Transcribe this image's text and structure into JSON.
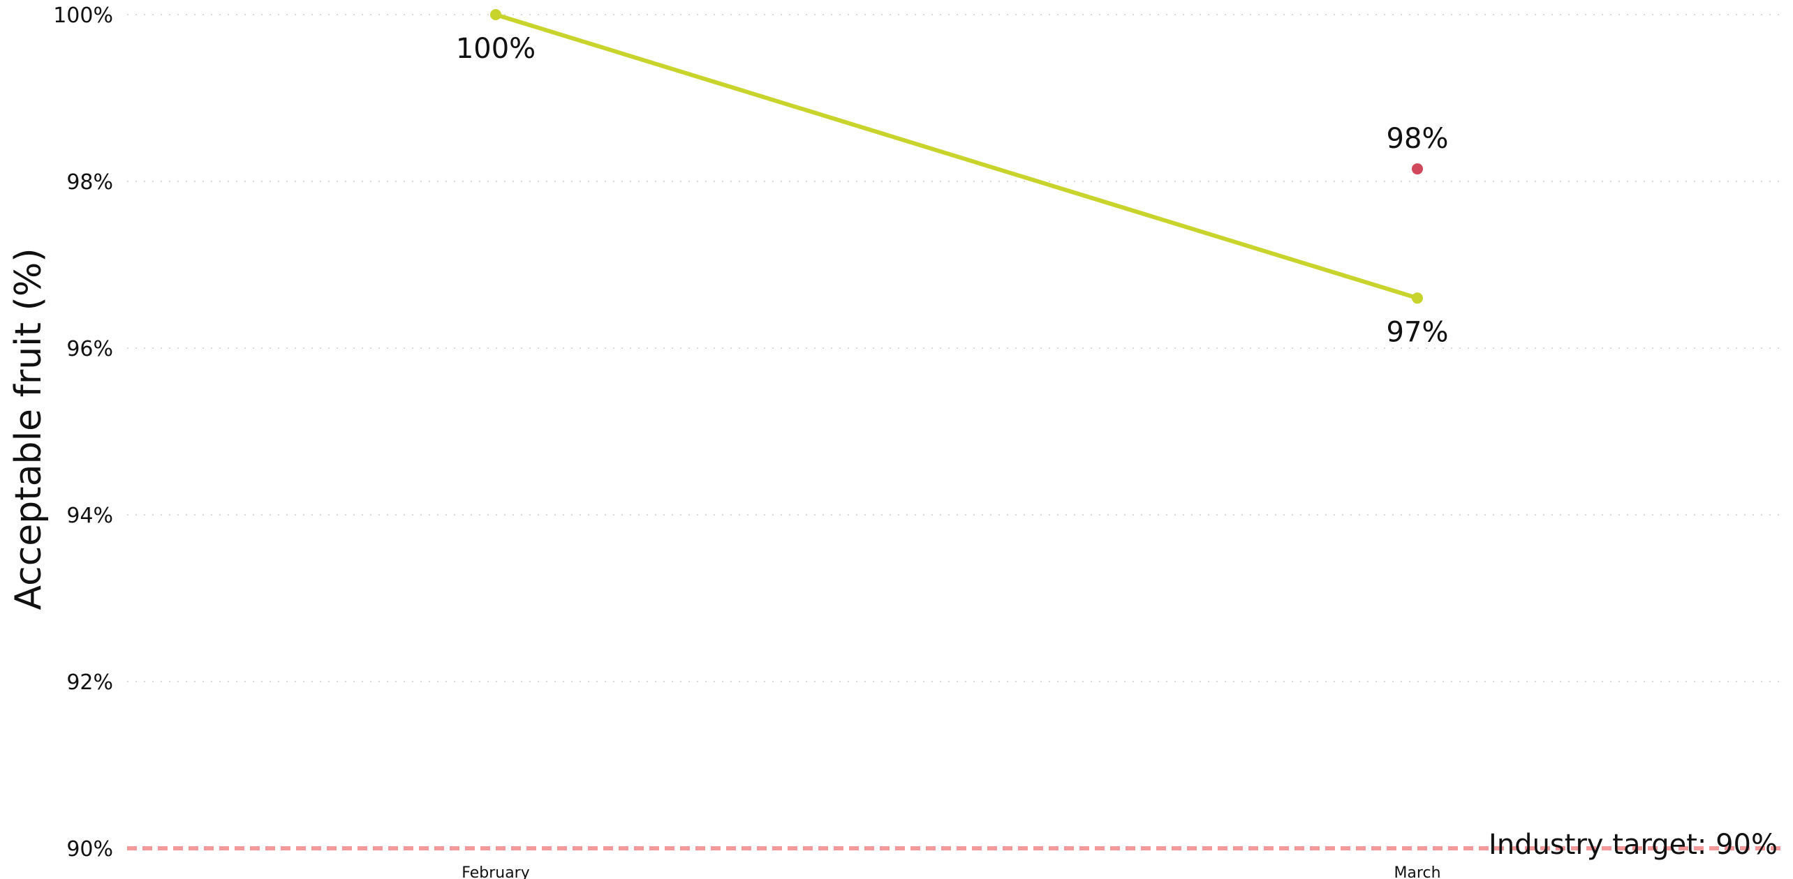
{
  "chart_data": {
    "type": "line",
    "title": "",
    "xlabel": "",
    "ylabel": "Acceptable fruit (%)",
    "categories": [
      "February",
      "March"
    ],
    "ylim": [
      90,
      100
    ],
    "y_ticks": [
      {
        "value": 90,
        "label": "90%"
      },
      {
        "value": 92,
        "label": "92%"
      },
      {
        "value": 94,
        "label": "94%"
      },
      {
        "value": 96,
        "label": "96%"
      },
      {
        "value": 98,
        "label": "98%"
      },
      {
        "value": 100,
        "label": "100%"
      }
    ],
    "grid": true,
    "legend": "none",
    "series": [
      {
        "style": "line",
        "color": "#c8d32b",
        "values": [
          100,
          96.6
        ],
        "labels": [
          "100%",
          "97%"
        ],
        "label_position": "below"
      },
      {
        "style": "points",
        "color": "#d1475b",
        "values": [
          null,
          98.15
        ],
        "labels": [
          null,
          "98%"
        ],
        "label_position": "above"
      }
    ],
    "reference_line": {
      "value": 90,
      "label": "Industry target: 90%",
      "color": "#f4999b",
      "style": "dashed"
    }
  }
}
